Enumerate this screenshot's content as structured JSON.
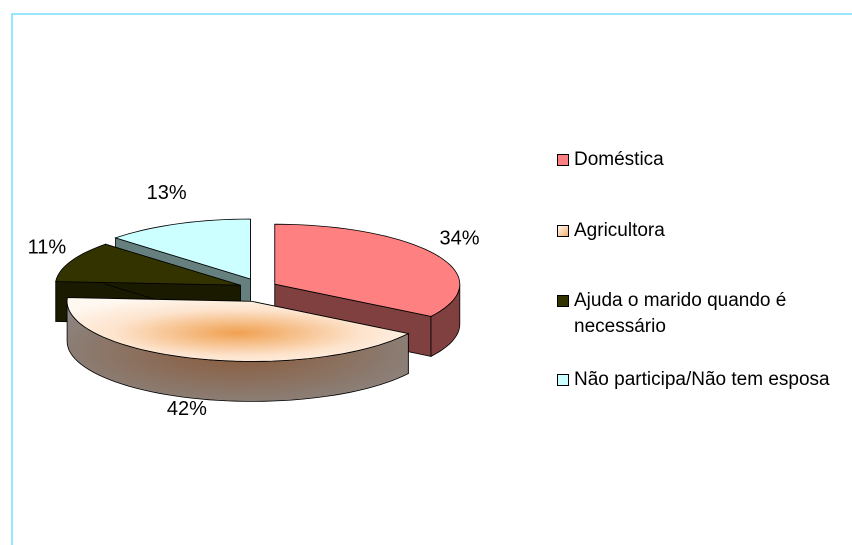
{
  "chart_data": {
    "type": "pie",
    "categories": [
      "Doméstica",
      "Agricultora",
      "Ajuda o marido quando é necessário",
      "Não participa/Não tem esposa"
    ],
    "values": [
      34,
      42,
      11,
      13
    ],
    "value_labels": [
      "34%",
      "42%",
      "11%",
      "13%"
    ],
    "colors": [
      "#ff8080",
      "#ffe8d6",
      "#333300",
      "#ccffff"
    ],
    "legend": "right"
  }
}
